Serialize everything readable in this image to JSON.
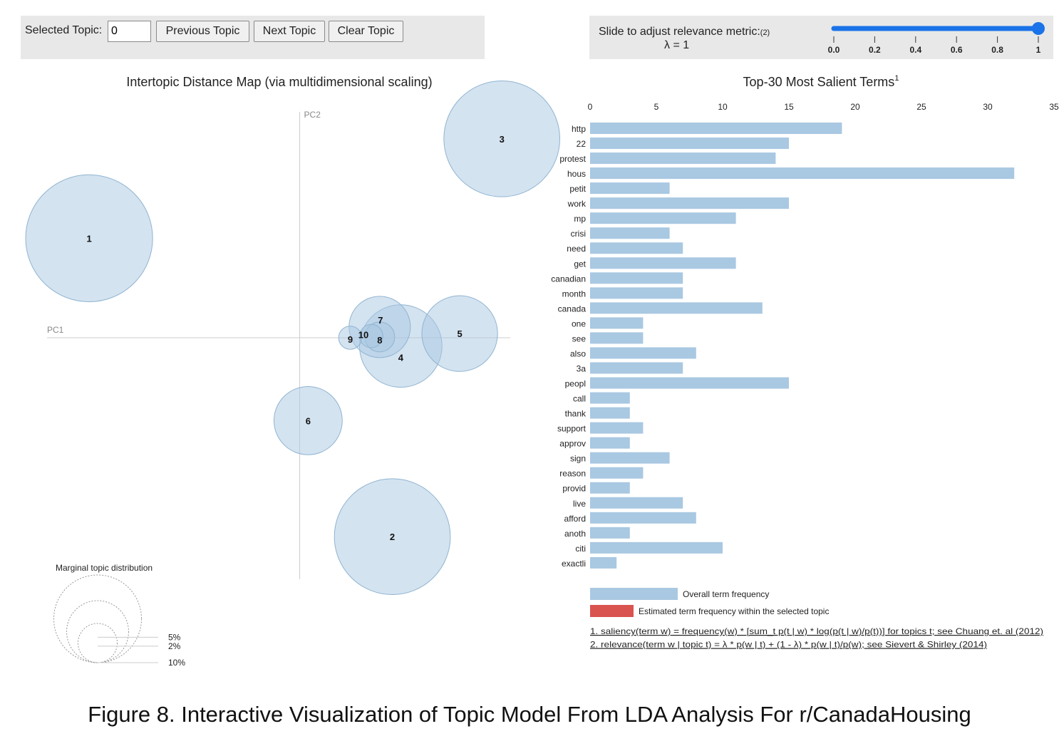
{
  "controls": {
    "selected_topic_label": "Selected Topic:",
    "selected_topic_value": "0",
    "previous_label": "Previous Topic",
    "next_label": "Next Topic",
    "clear_label": "Clear Topic",
    "slider_label": "Slide to adjust relevance metric:",
    "slider_note": "(2)",
    "lambda_text": "λ = 1",
    "lambda_value": 1,
    "slider_ticks": [
      "0.0",
      "0.2",
      "0.4",
      "0.6",
      "0.8",
      "1"
    ]
  },
  "caption": "Figure 8. Interactive Visualization of Topic Model From LDA Analysis For r/CanadaHousing",
  "chart_data": [
    {
      "type": "scatter",
      "title": "Intertopic Distance Map (via multidimensional scaling)",
      "xlabel": "PC1",
      "ylabel": "PC2",
      "xlim": [
        -0.3,
        0.25
      ],
      "ylim": [
        -0.3,
        0.3
      ],
      "colors": {
        "fill": "#a9c8e2",
        "stroke": "#8fb4d1",
        "axis": "#cccccc"
      },
      "topics": [
        {
          "label": "1",
          "x": -0.25,
          "y": 0.12,
          "size_pct": 9
        },
        {
          "label": "2",
          "x": 0.11,
          "y": -0.24,
          "size_pct": 7.5
        },
        {
          "label": "3",
          "x": 0.24,
          "y": 0.24,
          "size_pct": 7.5
        },
        {
          "label": "4",
          "x": 0.12,
          "y": -0.01,
          "size_pct": 3.8
        },
        {
          "label": "5",
          "x": 0.19,
          "y": 0.005,
          "size_pct": 3.2
        },
        {
          "label": "6",
          "x": 0.01,
          "y": -0.1,
          "size_pct": 2.6
        },
        {
          "label": "7",
          "x": 0.095,
          "y": 0.013,
          "size_pct": 2.1
        },
        {
          "label": "8",
          "x": 0.095,
          "y": 0.001,
          "size_pct": 0.5
        },
        {
          "label": "9",
          "x": 0.06,
          "y": 0.0,
          "size_pct": 0.3
        },
        {
          "label": "10",
          "x": 0.085,
          "y": 0.002,
          "size_pct": 0.3
        }
      ],
      "legend": {
        "title": "Marginal topic distribution",
        "entries": [
          {
            "label": "2%",
            "value_pct": 2
          },
          {
            "label": "5%",
            "value_pct": 5
          },
          {
            "label": "10%",
            "value_pct": 10
          }
        ]
      }
    },
    {
      "type": "bar",
      "orientation": "horizontal",
      "title": "Top-30 Most Salient Terms",
      "title_note": "1",
      "xlim": [
        0,
        35
      ],
      "ticks": [
        0,
        5,
        10,
        15,
        20,
        25,
        30,
        35
      ],
      "categories": [
        "http",
        "22",
        "protest",
        "hous",
        "petit",
        "work",
        "mp",
        "crisi",
        "need",
        "get",
        "canadian",
        "month",
        "canada",
        "one",
        "see",
        "also",
        "3a",
        "peopl",
        "call",
        "thank",
        "support",
        "approv",
        "sign",
        "reason",
        "provid",
        "live",
        "afford",
        "anoth",
        "citi",
        "exactli"
      ],
      "series": [
        {
          "name": "Overall term frequency",
          "color": "#a9c8e2",
          "values": [
            19,
            15,
            14,
            32,
            6,
            15,
            11,
            6,
            7,
            11,
            7,
            7,
            13,
            4,
            4,
            8,
            7,
            15,
            3,
            3,
            4,
            3,
            6,
            4,
            3,
            7,
            8,
            3,
            10,
            2
          ]
        }
      ],
      "legend": [
        {
          "label": "Overall term frequency",
          "color": "#a9c8e2"
        },
        {
          "label": "Estimated term frequency within the selected topic",
          "color": "#d9534f"
        }
      ],
      "footnotes": [
        "1. saliency(term w) = frequency(w) * [sum_t p(t | w) * log(p(t | w)/p(t))] for topics t; see Chuang et. al (2012)",
        "2. relevance(term w | topic t) = λ * p(w | t) + (1 - λ) * p(w | t)/p(w); see Sievert & Shirley (2014)"
      ]
    }
  ]
}
